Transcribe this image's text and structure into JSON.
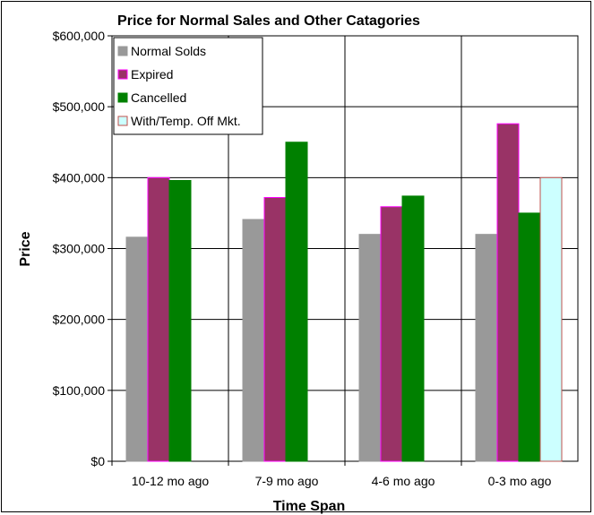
{
  "chart_data": {
    "type": "bar",
    "title": "Price for Normal Sales and Other Catagories",
    "xlabel": "Time Span",
    "ylabel": "Price",
    "categories": [
      "10-12 mo ago",
      "7-9 mo ago",
      "4-6 mo ago",
      "0-3 mo ago"
    ],
    "series": [
      {
        "name": "Normal Solds",
        "values": [
          316000,
          341000,
          320000,
          320000
        ],
        "color": "#999999",
        "border": "#999999"
      },
      {
        "name": "Expired",
        "values": [
          400000,
          372000,
          359000,
          476000
        ],
        "color": "#993366",
        "border": "#ff00ff"
      },
      {
        "name": "Cancelled",
        "values": [
          396000,
          450000,
          374000,
          350000
        ],
        "color": "#008000",
        "border": "#008000"
      },
      {
        "name": "With/Temp. Off Mkt.",
        "values": [
          null,
          null,
          null,
          400000
        ],
        "color": "#ccffff",
        "border": "#c0504d"
      }
    ],
    "ylim": [
      0,
      600000
    ],
    "yticks": [
      0,
      100000,
      200000,
      300000,
      400000,
      500000,
      600000
    ],
    "ytick_labels": [
      "$0",
      "$100,000",
      "$200,000",
      "$300,000",
      "$400,000",
      "$500,000",
      "$600,000"
    ],
    "grid": true,
    "legend_position": "top-left"
  }
}
